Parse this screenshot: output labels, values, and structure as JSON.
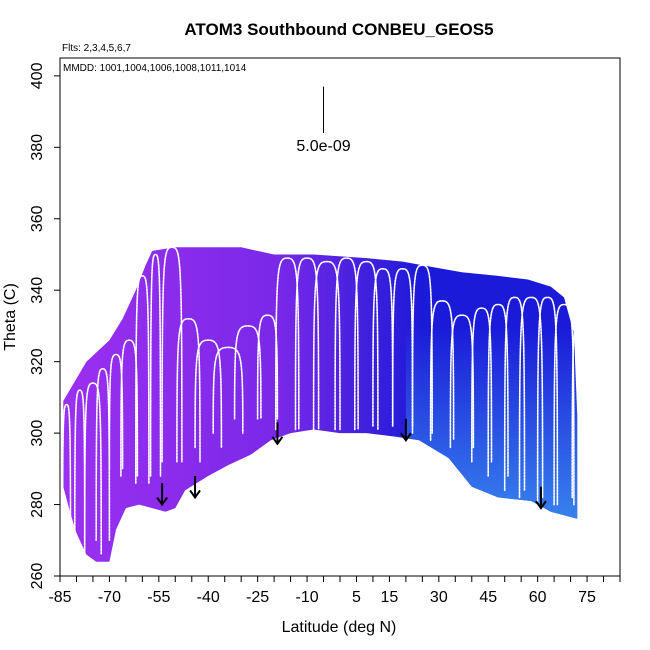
{
  "chart_data": {
    "type": "scatter",
    "title": "ATOM3 Southbound CONBEU_GEOS5",
    "subtitle": "Flts: 2,3,4,5,6,7",
    "annotation": "MMDD: 1001,1004,1006,1008,1011,1014",
    "xlabel": "Latitude (deg N)",
    "ylabel": "Theta (C)",
    "xlim": [
      -85,
      85
    ],
    "ylim": [
      260,
      405
    ],
    "x_tick_labels": [
      "-85",
      "-70",
      "-55",
      "-40",
      "-25",
      "-10",
      "5",
      "15",
      "30",
      "45",
      "60",
      "75"
    ],
    "x_tick_values": [
      -85,
      -70,
      -55,
      -40,
      -25,
      -10,
      5,
      15,
      30,
      45,
      60,
      75
    ],
    "x_minor_step": 5,
    "y_ticks": [
      260,
      280,
      300,
      320,
      340,
      360,
      380,
      400
    ],
    "scale_bar": {
      "label": "5.0e-09",
      "lat": -5,
      "theta_top": 397,
      "theta_bottom": 384
    },
    "color_gradient": {
      "south": "#9b30f0",
      "mid": "#7a28e8",
      "north_upper": "#1a1ad8",
      "north_lower": "#3a8ef0"
    },
    "profile_color": "#ffffff",
    "tropopause_arrows": [
      {
        "lat": -54,
        "theta": 286
      },
      {
        "lat": -44,
        "theta": 288
      },
      {
        "lat": -19,
        "theta": 303
      },
      {
        "lat": 20,
        "theta": 304
      },
      {
        "lat": 61,
        "theta": 285
      }
    ],
    "domain_top": [
      [
        -84,
        309
      ],
      [
        -77,
        320
      ],
      [
        -70,
        326
      ],
      [
        -66,
        332
      ],
      [
        -62,
        340
      ],
      [
        -59,
        347
      ],
      [
        -57,
        351
      ],
      [
        -50,
        352
      ],
      [
        -40,
        352
      ],
      [
        -30,
        352
      ],
      [
        -20,
        350
      ],
      [
        -8,
        350
      ],
      [
        8,
        349
      ],
      [
        19,
        348
      ],
      [
        25,
        347
      ],
      [
        37,
        345
      ],
      [
        48,
        344
      ],
      [
        57,
        343
      ],
      [
        64,
        341
      ],
      [
        68,
        338
      ],
      [
        71,
        328
      ],
      [
        72,
        305
      ]
    ],
    "domain_bottom": [
      [
        72,
        276
      ],
      [
        64,
        278
      ],
      [
        58,
        281
      ],
      [
        48,
        282
      ],
      [
        40,
        285
      ],
      [
        33,
        293
      ],
      [
        24,
        298
      ],
      [
        17,
        299
      ],
      [
        8,
        300
      ],
      [
        0,
        300
      ],
      [
        -8,
        301
      ],
      [
        -15,
        300
      ],
      [
        -21,
        298
      ],
      [
        -27,
        294
      ],
      [
        -34,
        291
      ],
      [
        -40,
        288
      ],
      [
        -47,
        284
      ],
      [
        -50,
        279
      ],
      [
        -53,
        278
      ],
      [
        -57,
        279
      ],
      [
        -61,
        280
      ],
      [
        -65,
        279
      ],
      [
        -68,
        273
      ],
      [
        -70,
        264
      ],
      [
        -74,
        264
      ],
      [
        -77,
        266
      ],
      [
        -80,
        272
      ],
      [
        -82,
        278
      ],
      [
        -84,
        285
      ]
    ],
    "profiles": [
      {
        "lat": -83,
        "top": 308,
        "bottom": 272,
        "w": 1.2
      },
      {
        "lat": -79,
        "top": 312,
        "bottom": 270,
        "w": 1.5
      },
      {
        "lat": -75,
        "top": 314,
        "bottom": 266,
        "w": 2.5
      },
      {
        "lat": -72,
        "top": 318,
        "bottom": 270,
        "w": 2.0
      },
      {
        "lat": -68,
        "top": 322,
        "bottom": 290,
        "w": 2.0
      },
      {
        "lat": -64,
        "top": 326,
        "bottom": 288,
        "w": 2.5
      },
      {
        "lat": -60,
        "top": 344,
        "bottom": 286,
        "w": 2.0
      },
      {
        "lat": -56,
        "top": 350,
        "bottom": 288,
        "w": 1.5
      },
      {
        "lat": -51,
        "top": 352,
        "bottom": 292,
        "w": 3.0
      },
      {
        "lat": -46,
        "top": 332,
        "bottom": 292,
        "w": 3.5
      },
      {
        "lat": -40,
        "top": 326,
        "bottom": 296,
        "w": 4.0
      },
      {
        "lat": -34,
        "top": 324,
        "bottom": 300,
        "w": 4.5
      },
      {
        "lat": -28,
        "top": 330,
        "bottom": 304,
        "w": 4.0
      },
      {
        "lat": -22,
        "top": 333,
        "bottom": 304,
        "w": 3.0
      },
      {
        "lat": -16,
        "top": 349,
        "bottom": 301,
        "w": 3.5
      },
      {
        "lat": -10,
        "top": 349,
        "bottom": 301,
        "w": 3.5
      },
      {
        "lat": -4,
        "top": 348,
        "bottom": 301,
        "w": 4.0
      },
      {
        "lat": 2,
        "top": 349,
        "bottom": 301,
        "w": 3.5
      },
      {
        "lat": 8,
        "top": 348,
        "bottom": 301,
        "w": 3.5
      },
      {
        "lat": 13,
        "top": 346,
        "bottom": 302,
        "w": 3.0
      },
      {
        "lat": 19,
        "top": 346,
        "bottom": 302,
        "w": 3.0
      },
      {
        "lat": 25,
        "top": 347,
        "bottom": 300,
        "w": 3.0
      },
      {
        "lat": 31,
        "top": 337,
        "bottom": 298,
        "w": 3.5
      },
      {
        "lat": 37,
        "top": 333,
        "bottom": 296,
        "w": 3.5
      },
      {
        "lat": 43,
        "top": 335,
        "bottom": 292,
        "w": 3.0
      },
      {
        "lat": 48,
        "top": 336,
        "bottom": 288,
        "w": 3.0
      },
      {
        "lat": 53,
        "top": 338,
        "bottom": 284,
        "w": 3.0
      },
      {
        "lat": 58,
        "top": 338,
        "bottom": 282,
        "w": 3.5
      },
      {
        "lat": 63,
        "top": 338,
        "bottom": 280,
        "w": 3.0
      },
      {
        "lat": 68,
        "top": 336,
        "bottom": 280,
        "w": 3.0
      },
      {
        "lat": 72,
        "top": 330,
        "bottom": 282,
        "w": 1.5
      }
    ]
  }
}
